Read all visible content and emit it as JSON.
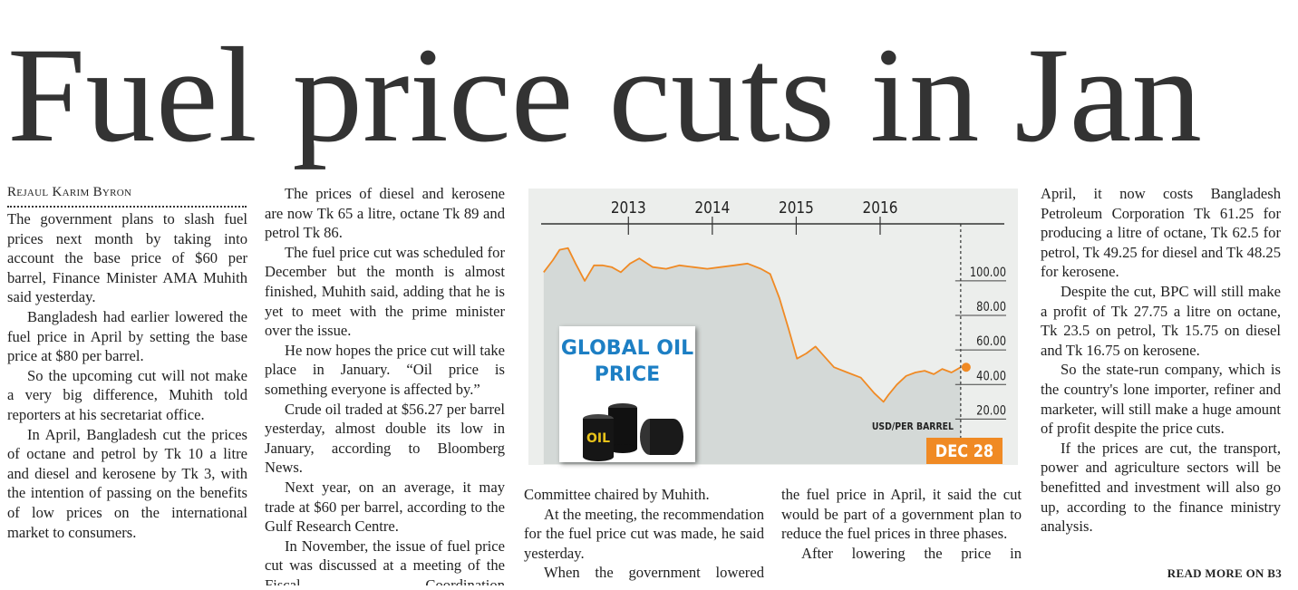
{
  "headline": "Fuel price cuts in Jan",
  "byline": "Rejaul Karim Byron",
  "columns": [
    [
      "The government plans to slash fuel prices next month by taking into account the base price of $60 per barrel, Finance Minister AMA Muhith said yesterday.",
      "Bangladesh had earlier lowered the fuel price in April by setting the base price at $80 per barrel.",
      "So the upcoming cut will not make a very big difference, Muhith told reporters at his secretariat office.",
      "In April, Bangladesh cut the prices of octane and petrol by Tk 10 a litre and diesel and kerosene by Tk 3, with the intention of passing on the benefits of low prices on the international market to consumers."
    ],
    [
      "The prices of diesel and kerosene are now Tk 65 a litre, octane Tk 89 and petrol Tk 86.",
      "The fuel price cut was scheduled for December but the month is almost finished, Muhith said, adding that he is yet to meet with the prime minister over the issue.",
      "He now hopes the price cut will take place in January. “Oil price is something everyone is affected by.”",
      "Crude oil traded at $56.27 per barrel yesterday, almost double its low in January, according to Bloomberg News.",
      "Next year, on an average, it may trade at $60 per barrel, according to the Gulf Research Centre.",
      "In November, the issue of fuel price cut was discussed at a meeting of the Fiscal Coordination"
    ],
    [
      "Committee chaired by Muhith.",
      "At the meeting, the recommendation for the fuel price cut was made, he said yesterday.",
      "When the government lowered"
    ],
    [
      "the fuel price in April, it said the cut would be part of a government plan to reduce the fuel prices in three phases.",
      "After lowering the price in"
    ],
    [
      "April, it now costs Bangladesh Petroleum Corporation Tk 61.25 for producing a litre of octane, Tk 62.5 for petrol, Tk 49.25 for diesel and Tk 48.25 for kerosene.",
      "Despite the cut, BPC will still make a profit of Tk 27.75 a litre on octane, Tk 23.5 on petrol, Tk 15.75 on diesel and Tk 16.75 on kerosene.",
      "So the state-run company, which is the country's lone importer, refiner and marketer, will still make a huge amount of profit despite the price cuts.",
      "If the prices are cut, the transport, power and agriculture sectors will be benefitted and investment will also go up, according to the finance ministry analysis."
    ]
  ],
  "read_more": "READ MORE ON B3",
  "chart_data": {
    "type": "line",
    "title": "GLOBAL OIL PRICE",
    "y_label": "USD/PER BARREL",
    "marker_label": "DEC 28",
    "barrel_label": "OIL",
    "x": [
      2011.99,
      2012.1,
      2012.18,
      2012.28,
      2012.37,
      2012.48,
      2012.59,
      2012.69,
      2012.8,
      2012.91,
      2013.02,
      2013.13,
      2013.29,
      2013.45,
      2013.61,
      2013.77,
      2013.94,
      2014.1,
      2014.26,
      2014.42,
      2014.58,
      2014.69,
      2014.8,
      2014.91,
      2015.01,
      2015.12,
      2015.23,
      2015.34,
      2015.45,
      2015.61,
      2015.77,
      2015.93,
      2016.04,
      2016.1,
      2016.2,
      2016.31,
      2016.42,
      2016.53,
      2016.64,
      2016.74,
      2016.85,
      2016.96
    ],
    "series": [
      {
        "color": "#f08a24",
        "values": [
          105,
          112,
          118,
          119,
          110,
          100,
          109,
          109,
          108,
          105,
          110,
          113,
          108,
          107,
          109,
          108,
          107,
          108,
          109,
          110,
          107,
          104,
          90,
          72,
          55,
          58,
          62,
          56,
          50,
          47,
          44,
          35,
          30,
          34,
          40,
          45,
          47,
          48,
          46,
          49,
          47,
          50
        ]
      }
    ],
    "area_color": "#d4d9d7",
    "xlim": [
      2011.96,
      2017.48
    ],
    "xticks": [
      2013,
      2014,
      2015,
      2016
    ],
    "ylim": [
      -6,
      133
    ],
    "yticks": [
      {
        "value": 20,
        "label": "20.00"
      },
      {
        "value": 40,
        "label": "40.00"
      },
      {
        "value": 60,
        "label": "60.00"
      },
      {
        "value": 80,
        "label": "80.00"
      },
      {
        "value": 100,
        "label": "100.00"
      }
    ]
  }
}
